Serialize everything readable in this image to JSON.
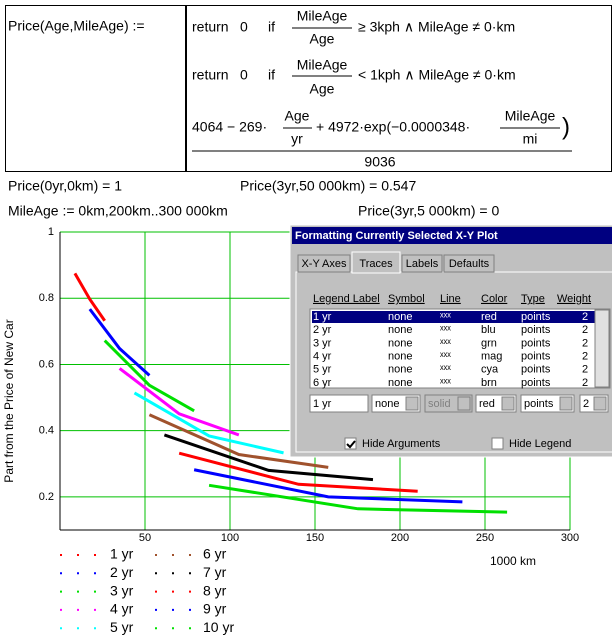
{
  "definition": {
    "lhs": "Price(Age,MileAge) :=",
    "cases": [
      {
        "keyword": "return",
        "value": "0",
        "if": "if",
        "numerator": "MileAge",
        "denominator": "Age",
        "condition": "≥ 3kph ∧ MileAge ≠ 0·km"
      },
      {
        "keyword": "return",
        "value": "0",
        "if": "if",
        "numerator": "MileAge",
        "denominator": "Age",
        "condition": "< 1kph ∧ MileAge ≠ 0·km"
      }
    ],
    "expression": {
      "part1": "4064 − 269·",
      "frac1": [
        "Age",
        "yr"
      ],
      "part2": "+ 4972·exp(−0.0000348·",
      "frac2": [
        "MileAge",
        "mi"
      ],
      "close": ")",
      "denominator": "9036"
    }
  },
  "results": [
    "Price(0yr,0km) = 1",
    "Price(3yr,50 000km) = 0.547",
    "MileAge := 0km,200km..300 000km",
    "Price(3yr,5 000km) = 0"
  ],
  "chart_data": {
    "type": "line",
    "x_label": "1000 km",
    "y_label": "Part from the Price of New Car",
    "xlim": [
      0,
      300
    ],
    "ylim": [
      0.1,
      1
    ],
    "xticks": [
      50,
      100,
      150,
      200,
      250,
      300
    ],
    "yticks": [
      0.2,
      0.4,
      0.6,
      0.8,
      1
    ],
    "grid": true,
    "series": [
      {
        "name": "1 yr",
        "color": "#ff0000",
        "x": [
          8.77,
          17.53,
          26.3
        ],
        "values": [
          0.875,
          0.797,
          0.732
        ]
      },
      {
        "name": "2 yr",
        "color": "#0000ff",
        "x": [
          17.53,
          35.06,
          52.6
        ],
        "values": [
          0.767,
          0.648,
          0.567
        ]
      },
      {
        "name": "3 yr",
        "color": "#00e000",
        "x": [
          26.3,
          52.6,
          78.9
        ],
        "values": [
          0.672,
          0.537,
          0.46
        ]
      },
      {
        "name": "4 yr",
        "color": "#ff00ff",
        "x": [
          35.06,
          70.1,
          105.2
        ],
        "values": [
          0.588,
          0.451,
          0.387
        ]
      },
      {
        "name": "5 yr",
        "color": "#00ffff",
        "x": [
          43.8,
          87.7,
          131.5
        ],
        "values": [
          0.514,
          0.384,
          0.333
        ]
      },
      {
        "name": "6 yr",
        "color": "#a0522d",
        "x": [
          52.6,
          105.2,
          157.8
        ],
        "values": [
          0.448,
          0.328,
          0.289
        ]
      },
      {
        "name": "7 yr",
        "color": "#000000",
        "x": [
          61.4,
          122.7,
          184.1
        ],
        "values": [
          0.387,
          0.28,
          0.252
        ]
      },
      {
        "name": "8 yr",
        "color": "#ff0000",
        "x": [
          70.1,
          140.3,
          210.4
        ],
        "values": [
          0.332,
          0.238,
          0.217
        ]
      },
      {
        "name": "9 yr",
        "color": "#0000ff",
        "x": [
          78.9,
          157.8,
          236.7
        ],
        "values": [
          0.282,
          0.2,
          0.185
        ]
      },
      {
        "name": "10 yr",
        "color": "#00e000",
        "x": [
          87.7,
          175.3,
          263
        ],
        "values": [
          0.235,
          0.164,
          0.154
        ]
      }
    ]
  },
  "dialog": {
    "title": "Formatting Currently Selected X-Y Plot",
    "tabs": [
      "X-Y Axes",
      "Traces",
      "Labels",
      "Defaults"
    ],
    "columns": [
      "Legend Label",
      "Symbol",
      "Line",
      "Color",
      "Type",
      "Weight"
    ],
    "rows": [
      [
        "1 yr",
        "none",
        "ˣˣˣ",
        "red",
        "points",
        "2"
      ],
      [
        "2 yr",
        "none",
        "ˣˣˣ",
        "blu",
        "points",
        "2"
      ],
      [
        "3 yr",
        "none",
        "ˣˣˣ",
        "grn",
        "points",
        "2"
      ],
      [
        "4 yr",
        "none",
        "ˣˣˣ",
        "mag",
        "points",
        "2"
      ],
      [
        "5 yr",
        "none",
        "ˣˣˣ",
        "cya",
        "points",
        "2"
      ],
      [
        "6 yr",
        "none",
        "ˣˣˣ",
        "brn",
        "points",
        "2"
      ]
    ],
    "editors": [
      "1 yr",
      "none",
      "solid",
      "red",
      "points",
      "2"
    ],
    "checkboxes": [
      "Hide Arguments",
      "Hide Legend"
    ]
  }
}
